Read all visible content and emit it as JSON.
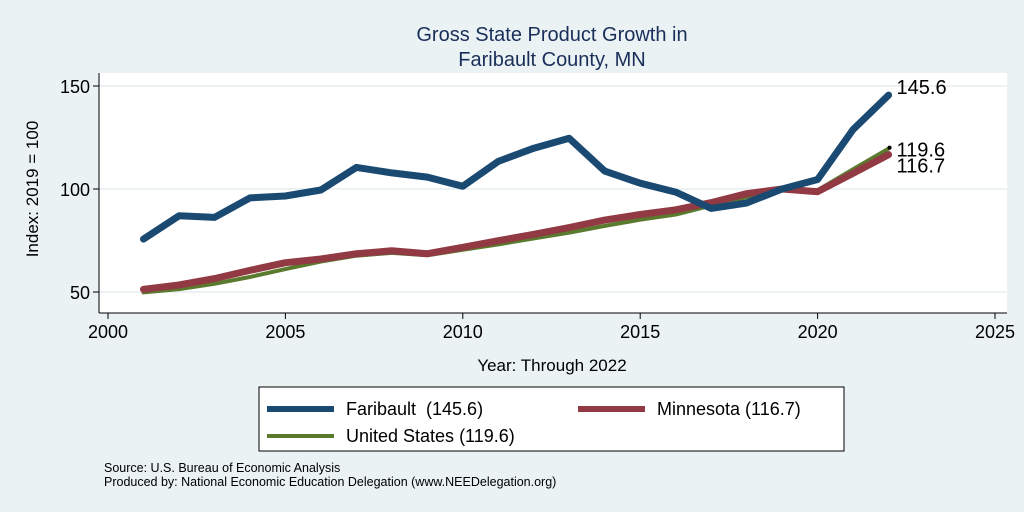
{
  "chart_data": {
    "type": "line",
    "title": [
      "Gross State Product Growth in",
      "Faribault County, MN"
    ],
    "xlabel": "Year: Through 2022",
    "ylabel": "Index: 2019 = 100",
    "xlim": [
      2000,
      2025
    ],
    "ylim": [
      50,
      150
    ],
    "xticks": [
      2000,
      2005,
      2010,
      2015,
      2020,
      2025
    ],
    "yticks": [
      50,
      100,
      150
    ],
    "grid": "horizontal",
    "legend_position": "bottom",
    "x": [
      2001,
      2002,
      2003,
      2004,
      2005,
      2006,
      2007,
      2008,
      2009,
      2010,
      2011,
      2012,
      2013,
      2014,
      2015,
      2016,
      2017,
      2018,
      2019,
      2020,
      2021,
      2022
    ],
    "series": [
      {
        "name": "Faribault",
        "legend_label": "Faribault  (145.6)",
        "color": "#1a4a72",
        "end_label": "145.6",
        "values": [
          75.7,
          87.0,
          86.2,
          95.7,
          96.6,
          99.5,
          110.5,
          107.8,
          105.8,
          101.3,
          113.4,
          119.8,
          124.6,
          108.7,
          102.8,
          98.5,
          90.6,
          93.2,
          100.0,
          104.6,
          128.9,
          145.6
        ]
      },
      {
        "name": "Minnesota",
        "legend_label": "Minnesota (116.7)",
        "color": "#923a44",
        "end_label": "116.7",
        "values": [
          51.3,
          53.4,
          56.5,
          60.5,
          64.2,
          66.0,
          68.6,
          70.0,
          68.6,
          71.7,
          74.9,
          78.0,
          81.3,
          84.9,
          87.6,
          89.9,
          93.4,
          97.7,
          100.0,
          98.7,
          107.6,
          116.7
        ]
      },
      {
        "name": "United States",
        "legend_label": "United States (119.6)",
        "color": "#5a7a2e",
        "end_label": "119.6",
        "values": [
          49.8,
          51.4,
          54.0,
          57.3,
          61.1,
          64.8,
          67.6,
          69.0,
          67.8,
          70.5,
          73.1,
          76.0,
          78.8,
          82.1,
          85.1,
          87.6,
          92.0,
          96.0,
          100.0,
          99.4,
          109.6,
          119.6
        ]
      }
    ]
  },
  "footnotes": {
    "source": "Source: U.S. Bureau of Economic Analysis",
    "produced_by": "Produced by: National Economic Education Delegation (www.NEEDelegation.org)"
  }
}
